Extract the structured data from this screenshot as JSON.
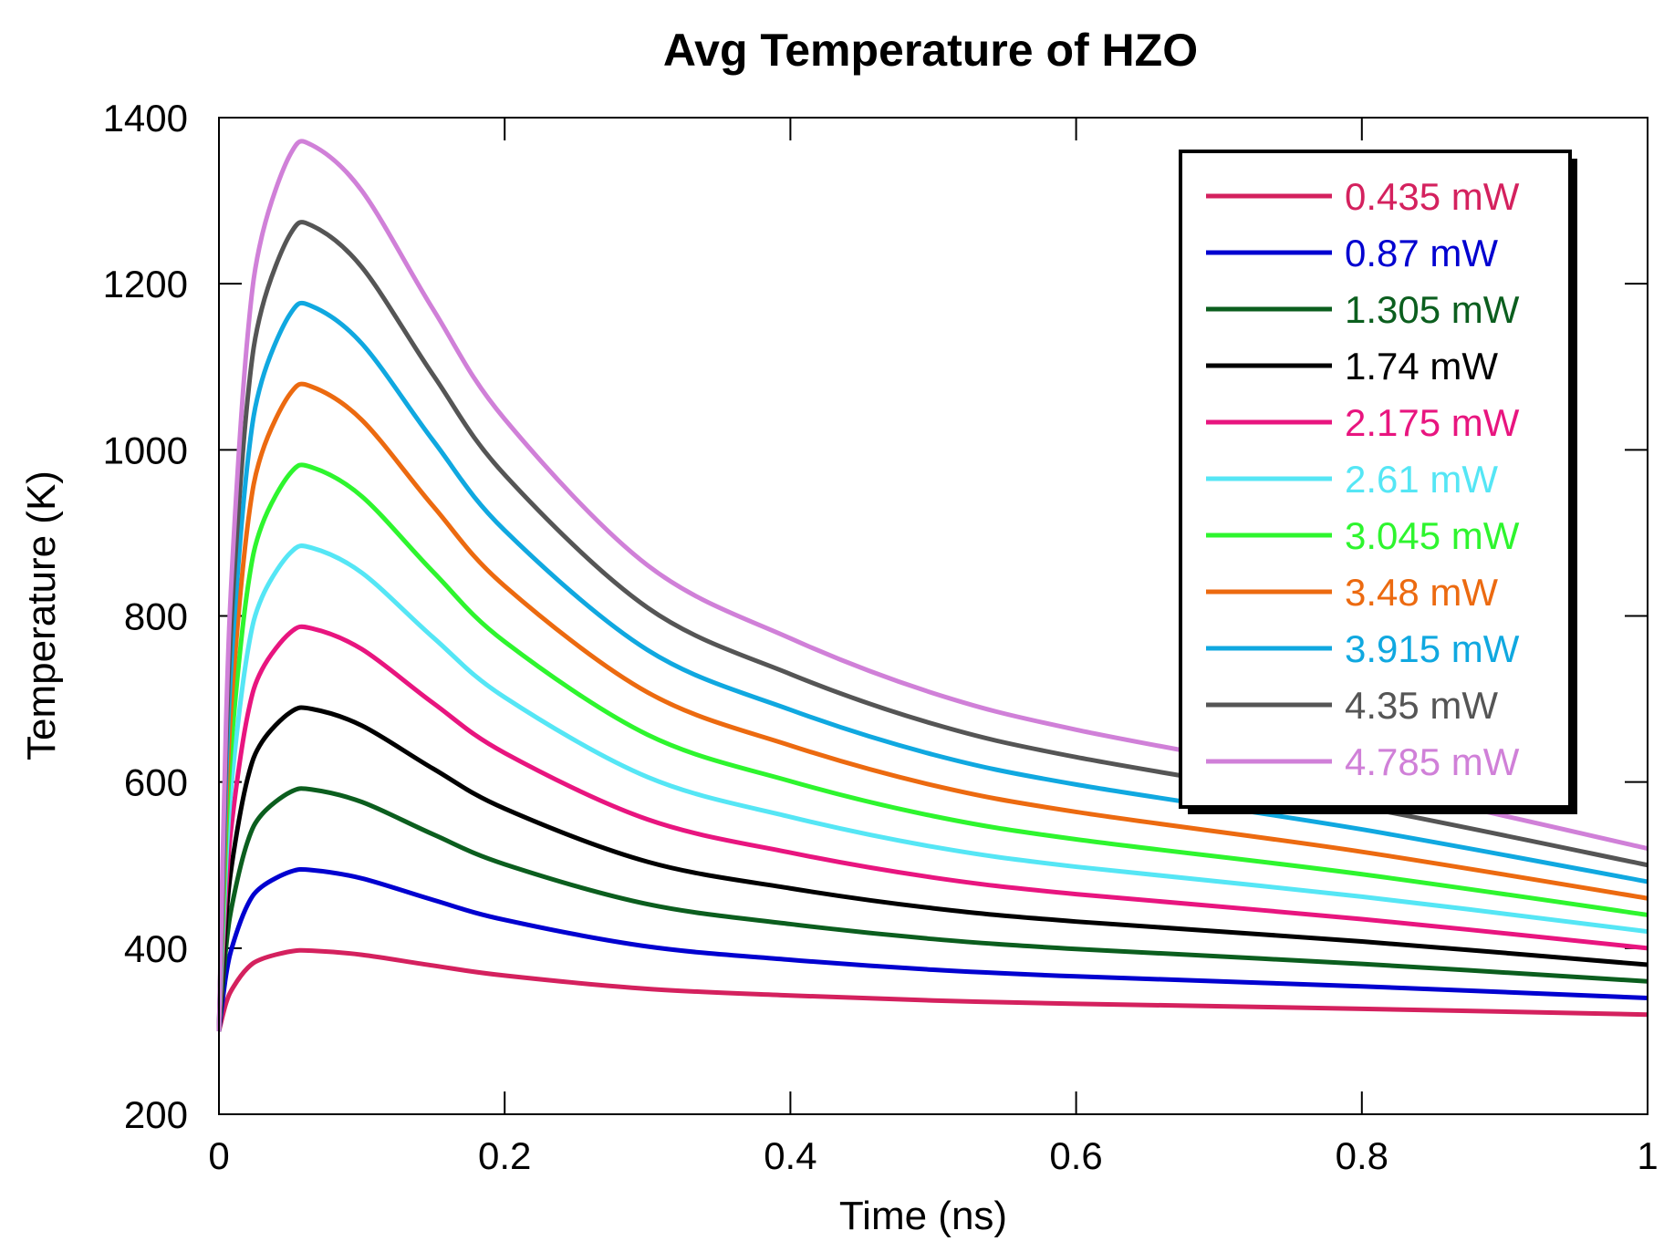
{
  "chart_data": {
    "type": "line",
    "title": "Avg Temperature of HZO",
    "xlabel": "Time (ns)",
    "ylabel": "Temperature (K)",
    "xlim": [
      0,
      1
    ],
    "ylim": [
      200,
      1400
    ],
    "xticks": [
      "0",
      "0.2",
      "0.4",
      "0.6",
      "0.8",
      "1"
    ],
    "yticks": [
      "200",
      "400",
      "600",
      "800",
      "1000",
      "1200",
      "1400"
    ],
    "grid": false,
    "legend_position": "top-right",
    "x": [
      0,
      0.005,
      0.01,
      0.02,
      0.03,
      0.05,
      0.065,
      0.1,
      0.15,
      0.2,
      0.3,
      0.4,
      0.5,
      0.6,
      0.8,
      1.0
    ],
    "series": [
      {
        "name": "0.435 mW",
        "color": "#d4215e",
        "values": [
          300,
          334,
          353,
          376,
          387,
          396,
          397,
          392,
          379,
          367,
          351,
          343,
          337,
          333,
          327,
          320
        ]
      },
      {
        "name": "0.87 mW",
        "color": "#0000d0",
        "values": [
          300,
          368,
          406,
          452,
          474,
          492,
          494,
          484,
          458,
          434,
          402,
          386,
          374,
          366,
          354,
          340
        ]
      },
      {
        "name": "1.305 mW",
        "color": "#0b5e1e",
        "values": [
          300,
          402,
          459,
          528,
          561,
          588,
          591,
          576,
          537,
          501,
          453,
          429,
          411,
          399,
          381,
          360
        ]
      },
      {
        "name": "1.74 mW",
        "color": "#000000",
        "values": [
          300,
          436,
          512,
          604,
          648,
          684,
          688,
          668,
          616,
          568,
          504,
          472,
          448,
          432,
          408,
          380
        ]
      },
      {
        "name": "2.175 mW",
        "color": "#e8157f",
        "values": [
          300,
          470,
          565,
          680,
          735,
          780,
          785,
          760,
          695,
          635,
          555,
          515,
          485,
          465,
          435,
          400
        ]
      },
      {
        "name": "2.61 mW",
        "color": "#55e6f5",
        "values": [
          300,
          504,
          618,
          756,
          822,
          876,
          882,
          852,
          774,
          702,
          606,
          558,
          522,
          498,
          462,
          420
        ]
      },
      {
        "name": "3.045 mW",
        "color": "#2ef52e",
        "values": [
          300,
          538,
          671,
          832,
          909,
          972,
          979,
          944,
          853,
          769,
          657,
          601,
          559,
          531,
          489,
          440
        ]
      },
      {
        "name": "3.48 mW",
        "color": "#ec6a10",
        "values": [
          300,
          572,
          724,
          908,
          996,
          1068,
          1076,
          1036,
          932,
          836,
          708,
          644,
          596,
          564,
          516,
          460
        ]
      },
      {
        "name": "3.915 mW",
        "color": "#10a8e0",
        "values": [
          300,
          606,
          777,
          984,
          1083,
          1164,
          1173,
          1128,
          1011,
          903,
          759,
          687,
          633,
          597,
          543,
          480
        ]
      },
      {
        "name": "4.35 mW",
        "color": "#555555",
        "values": [
          300,
          640,
          830,
          1060,
          1170,
          1260,
          1270,
          1220,
          1090,
          970,
          810,
          730,
          670,
          630,
          570,
          500
        ]
      },
      {
        "name": "4.785 mW",
        "color": "#d080d8",
        "values": [
          300,
          674,
          883,
          1136,
          1257,
          1356,
          1367,
          1312,
          1169,
          1037,
          861,
          773,
          707,
          663,
          597,
          520
        ]
      }
    ]
  }
}
